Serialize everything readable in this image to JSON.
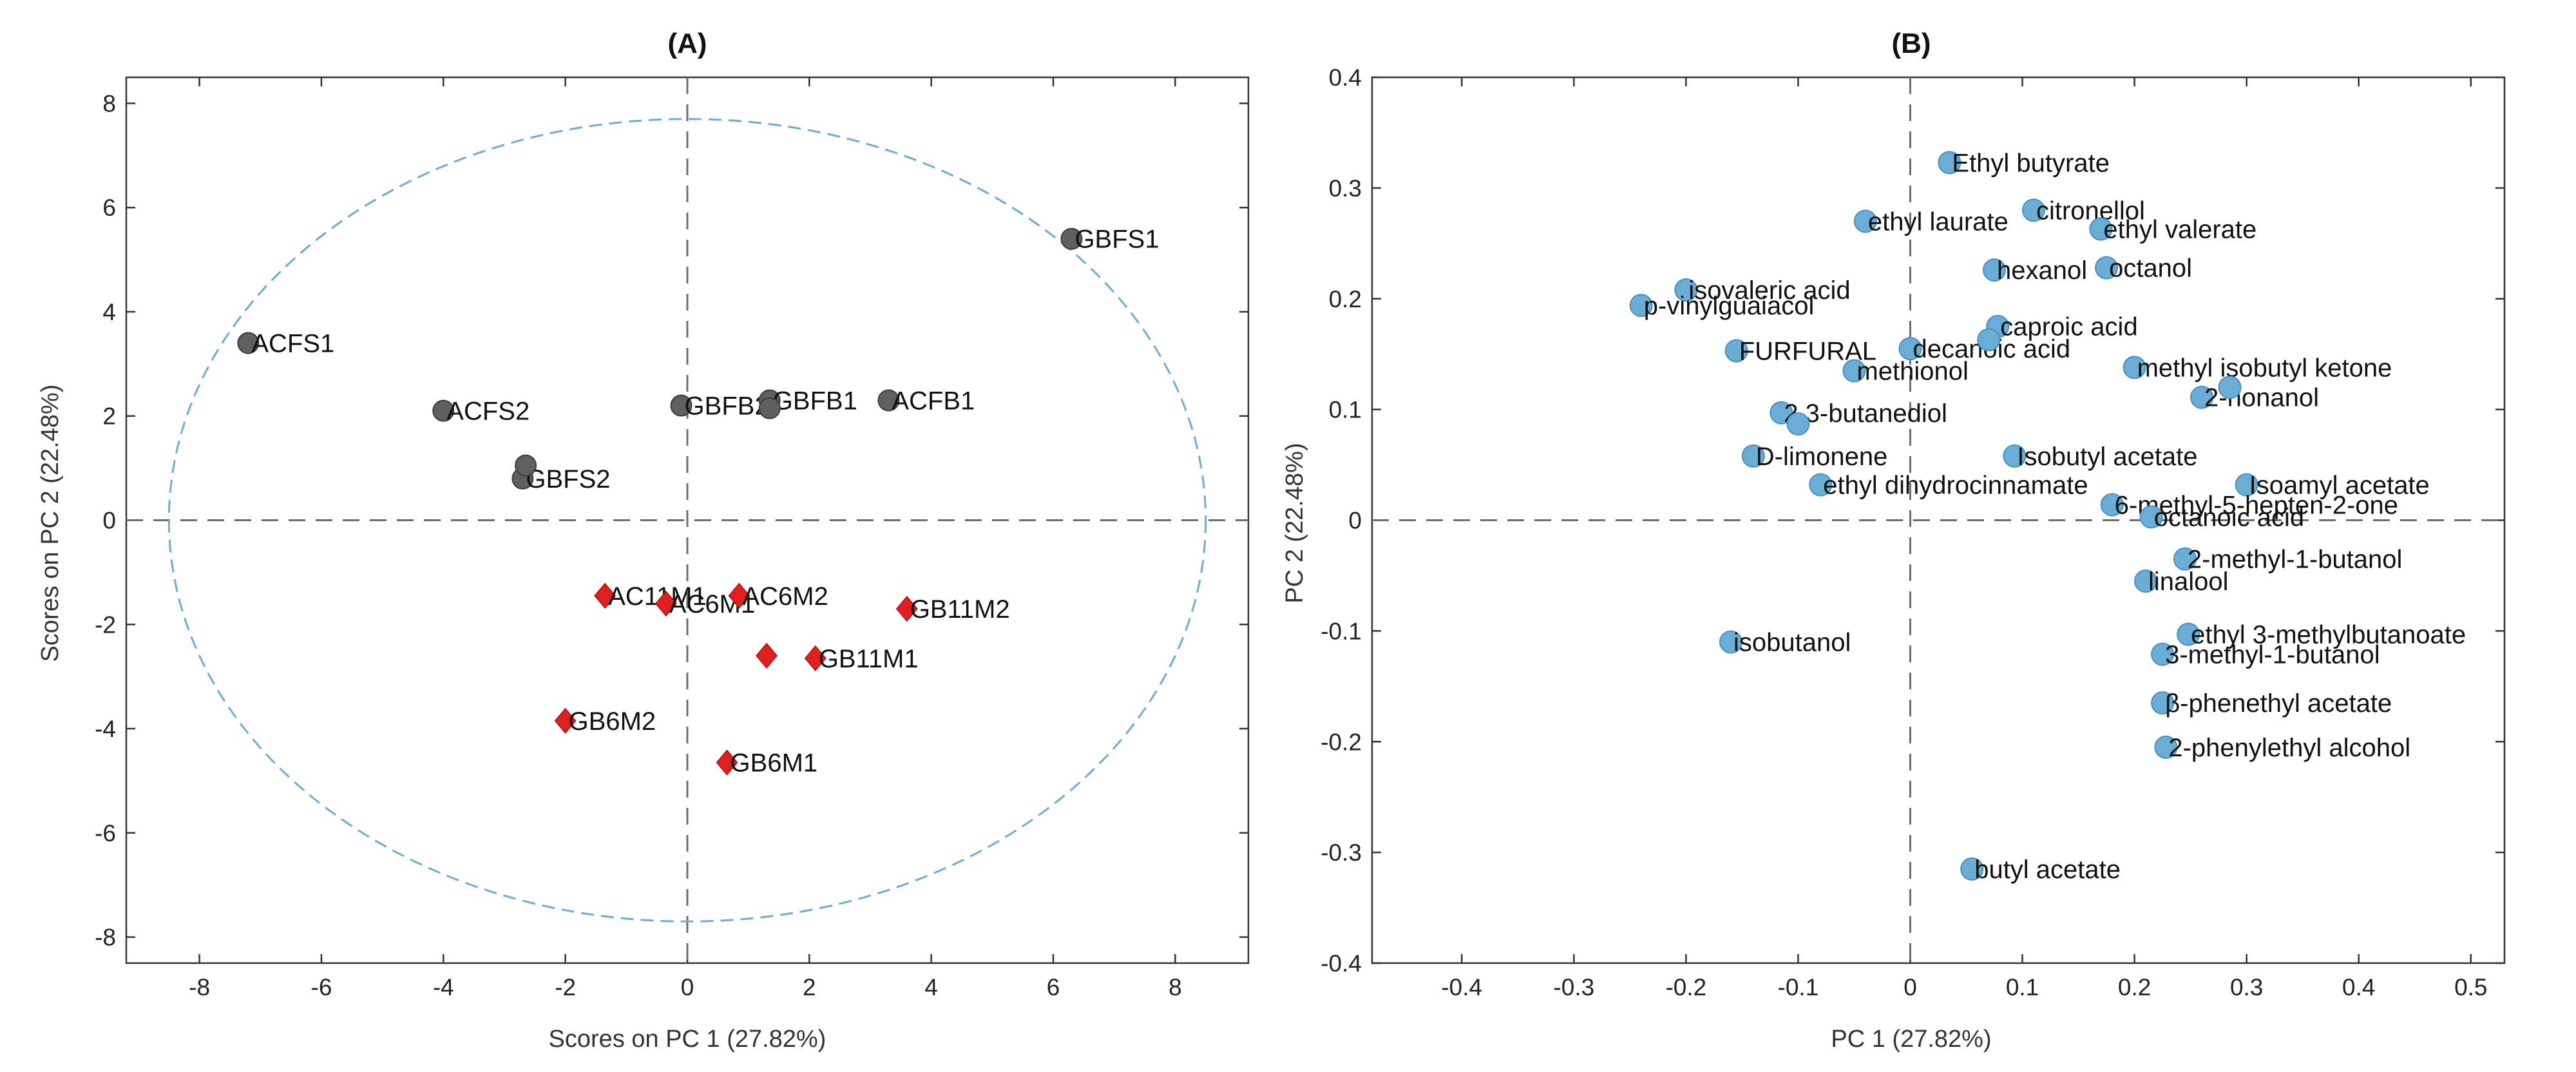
{
  "chart_data": [
    {
      "type": "scatter",
      "title": "(A)",
      "xlabel": "Scores on PC 1 (27.82%)",
      "ylabel": "Scores on PC 2 (22.48%)",
      "xlim": [
        -9.2,
        9.2
      ],
      "ylim": [
        -8.5,
        8.5
      ],
      "xticks": [
        -8,
        -6,
        -4,
        -2,
        0,
        2,
        4,
        6,
        8
      ],
      "yticks": [
        -8,
        -6,
        -4,
        -2,
        0,
        2,
        4,
        6,
        8
      ],
      "grid": false,
      "ellipse": {
        "cx": 0,
        "cy": 0,
        "rx": 8.5,
        "ry": 7.7,
        "color": "#6aaed6",
        "style": "dashed"
      },
      "series": [
        {
          "name": "gray circles",
          "marker": "circle",
          "color": "#606060",
          "points": [
            {
              "label": "GBFS1",
              "x": 6.3,
              "y": 5.4
            },
            {
              "label": "ACFS1",
              "x": -7.2,
              "y": 3.4
            },
            {
              "label": "ACFS2",
              "x": -4.0,
              "y": 2.1
            },
            {
              "label": "GBFS2",
              "x": -2.7,
              "y": 0.8
            },
            {
              "label": "",
              "x": -2.65,
              "y": 1.05
            },
            {
              "label": "GBFB2",
              "x": -0.1,
              "y": 2.2
            },
            {
              "label": "GBFB1",
              "x": 1.35,
              "y": 2.3
            },
            {
              "label": "",
              "x": 1.35,
              "y": 2.15
            },
            {
              "label": "ACFB1",
              "x": 3.3,
              "y": 2.3
            }
          ]
        },
        {
          "name": "red diamonds",
          "marker": "diamond",
          "color": "#e02020",
          "points": [
            {
              "label": "AC11M1",
              "x": -1.35,
              "y": -1.45
            },
            {
              "label": "AC6M1",
              "x": -0.35,
              "y": -1.6
            },
            {
              "label": "AC6M2",
              "x": 0.85,
              "y": -1.45
            },
            {
              "label": "GB11M2",
              "x": 3.6,
              "y": -1.7
            },
            {
              "label": "",
              "x": 1.3,
              "y": -2.6
            },
            {
              "label": "GB11M1",
              "x": 2.1,
              "y": -2.65
            },
            {
              "label": "GB6M2",
              "x": -2.0,
              "y": -3.85
            },
            {
              "label": "GB6M1",
              "x": 0.65,
              "y": -4.65
            }
          ]
        }
      ]
    },
    {
      "type": "scatter",
      "title": "(B)",
      "xlabel": "PC 1 (27.82%)",
      "ylabel": "PC 2 (22.48%)",
      "xlim": [
        -0.48,
        0.53
      ],
      "ylim": [
        -0.4,
        0.4
      ],
      "xticks": [
        -0.4,
        -0.3,
        -0.2,
        -0.1,
        0,
        0.1,
        0.2,
        0.3,
        0.4,
        0.5
      ],
      "yticks": [
        -0.4,
        -0.3,
        -0.2,
        -0.1,
        0,
        0.1,
        0.2,
        0.3,
        0.4
      ],
      "grid": false,
      "series": [
        {
          "name": "volatile compounds",
          "marker": "circle",
          "color": "#6aaed6",
          "points": [
            {
              "label": "Ethyl butyrate",
              "x": 0.035,
              "y": 0.323
            },
            {
              "label": "citronellol",
              "x": 0.11,
              "y": 0.28
            },
            {
              "label": "ethyl laurate",
              "x": -0.04,
              "y": 0.27
            },
            {
              "label": "ethyl valerate",
              "x": 0.17,
              "y": 0.263
            },
            {
              "label": "hexanol",
              "x": 0.075,
              "y": 0.226
            },
            {
              "label": "octanol",
              "x": 0.175,
              "y": 0.228
            },
            {
              "label": "isovaleric acid",
              "x": -0.2,
              "y": 0.208
            },
            {
              "label": "p-vinylguaiacol",
              "x": -0.24,
              "y": 0.194
            },
            {
              "label": "caproic acid",
              "x": 0.078,
              "y": 0.175
            },
            {
              "label": "FURFURAL",
              "x": -0.155,
              "y": 0.153
            },
            {
              "label": "decanoic acid",
              "x": 0.0,
              "y": 0.155
            },
            {
              "label": "",
              "x": 0.07,
              "y": 0.163
            },
            {
              "label": "methionol",
              "x": -0.05,
              "y": 0.135
            },
            {
              "label": "methyl isobutyl ketone",
              "x": 0.2,
              "y": 0.138
            },
            {
              "label": "2-nonanol",
              "x": 0.26,
              "y": 0.111
            },
            {
              "label": "",
              "x": 0.285,
              "y": 0.12
            },
            {
              "label": "2,3-butanediol",
              "x": -0.115,
              "y": 0.097
            },
            {
              "label": "",
              "x": -0.1,
              "y": 0.087
            },
            {
              "label": "D-limonene",
              "x": -0.14,
              "y": 0.058
            },
            {
              "label": "Isobutyl acetate",
              "x": 0.093,
              "y": 0.058
            },
            {
              "label": "ethyl dihydrocinnamate",
              "x": -0.08,
              "y": 0.032
            },
            {
              "label": "Isoamyl acetate",
              "x": 0.3,
              "y": 0.032
            },
            {
              "label": "6-methyl-5-hepten-2-one",
              "x": 0.18,
              "y": 0.014
            },
            {
              "label": "octanoic acid",
              "x": 0.215,
              "y": 0.003
            },
            {
              "label": "2-methyl-1-butanol",
              "x": 0.245,
              "y": -0.035
            },
            {
              "label": "linalool",
              "x": 0.21,
              "y": -0.055
            },
            {
              "label": "ethyl 3-methylbutanoate",
              "x": 0.248,
              "y": -0.103
            },
            {
              "label": "isobutanol",
              "x": -0.16,
              "y": -0.11
            },
            {
              "label": "3-methyl-1-butanol",
              "x": 0.225,
              "y": -0.121
            },
            {
              "label": "β-phenethyl acetate",
              "x": 0.225,
              "y": -0.165
            },
            {
              "label": "2-phenylethyl alcohol",
              "x": 0.228,
              "y": -0.205
            },
            {
              "label": "butyl acetate",
              "x": 0.055,
              "y": -0.315
            }
          ]
        }
      ]
    }
  ]
}
